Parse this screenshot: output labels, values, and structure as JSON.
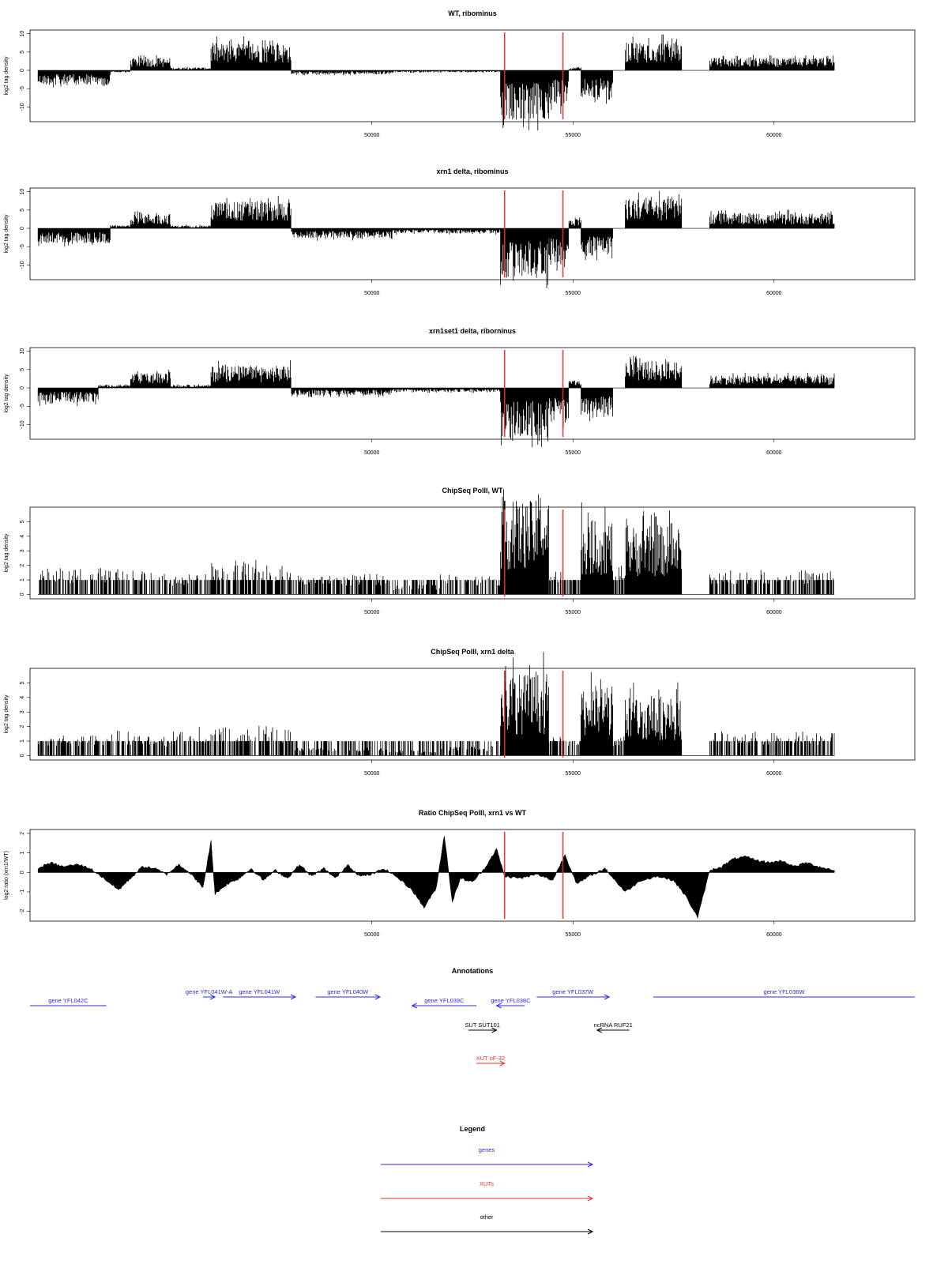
{
  "chart_data": {
    "xlim": [
      41500,
      63500
    ],
    "x_ticks": [
      50000,
      55000,
      60000
    ],
    "data_range": [
      41700,
      61500
    ],
    "markers": {
      "positions": [
        53300,
        54750
      ],
      "color": "#e8312f"
    },
    "panels": [
      {
        "title": "WT, ribominus",
        "ylabel": "log2 tag density",
        "ylim": [
          -14,
          11
        ],
        "y_ticks": [
          -10,
          -5,
          0,
          5,
          10
        ],
        "type": "bar",
        "segments": [
          [
            41700,
            43500,
            -3
          ],
          [
            43500,
            44000,
            -0.4
          ],
          [
            44000,
            45000,
            2.5
          ],
          [
            45000,
            46000,
            0.6
          ],
          [
            46000,
            47200,
            5.5
          ],
          [
            47200,
            48000,
            5.5
          ],
          [
            48000,
            50500,
            -0.8
          ],
          [
            50500,
            51700,
            -0.4
          ],
          [
            51700,
            53200,
            -0.4
          ],
          [
            53200,
            54400,
            -10
          ],
          [
            54400,
            54900,
            -7
          ],
          [
            54900,
            55200,
            0.6
          ],
          [
            55200,
            56000,
            -6
          ],
          [
            56000,
            56300,
            0
          ],
          [
            56300,
            57700,
            6
          ],
          [
            57700,
            58400,
            0
          ],
          [
            58400,
            61500,
            2.5
          ]
        ]
      },
      {
        "title": "xrn1 delta, ribominus",
        "ylabel": "log2 tag density",
        "ylim": [
          -14,
          11
        ],
        "y_ticks": [
          -10,
          -5,
          0,
          5,
          10
        ],
        "type": "bar",
        "segments": [
          [
            41700,
            43500,
            -3
          ],
          [
            43500,
            44000,
            0.6
          ],
          [
            44000,
            45000,
            3
          ],
          [
            45000,
            46000,
            0.6
          ],
          [
            46000,
            47200,
            5.5
          ],
          [
            47200,
            48000,
            5.5
          ],
          [
            48000,
            50500,
            -2
          ],
          [
            50500,
            51700,
            -1
          ],
          [
            51700,
            53200,
            -1
          ],
          [
            53200,
            54400,
            -10
          ],
          [
            54400,
            54900,
            -7
          ],
          [
            54900,
            55200,
            2
          ],
          [
            55200,
            56000,
            -6
          ],
          [
            56000,
            56300,
            0
          ],
          [
            56300,
            57700,
            6
          ],
          [
            57700,
            58400,
            0
          ],
          [
            58400,
            61500,
            3
          ]
        ]
      },
      {
        "title": "xrn1set1 delta, riborninus",
        "ylabel": "log2 tag density",
        "ylim": [
          -14,
          11
        ],
        "y_ticks": [
          -10,
          -5,
          0,
          5,
          10
        ],
        "type": "bar",
        "segments": [
          [
            41700,
            43200,
            -3
          ],
          [
            43200,
            44000,
            0.6
          ],
          [
            44000,
            45000,
            3
          ],
          [
            45000,
            46000,
            0.6
          ],
          [
            46000,
            47200,
            4.5
          ],
          [
            47200,
            48000,
            4.5
          ],
          [
            48000,
            50500,
            -1.5
          ],
          [
            50500,
            51700,
            -0.8
          ],
          [
            51700,
            53200,
            -0.8
          ],
          [
            53200,
            54400,
            -10
          ],
          [
            54400,
            54900,
            -7
          ],
          [
            54900,
            55200,
            1.5
          ],
          [
            55200,
            56000,
            -6
          ],
          [
            56000,
            56300,
            0
          ],
          [
            56300,
            57700,
            5.5
          ],
          [
            57700,
            58400,
            0
          ],
          [
            58400,
            61500,
            2.5
          ]
        ]
      },
      {
        "title": "ChipSeq PolII, WT",
        "ylabel": "log2 tag density",
        "ylim": [
          -0.3,
          6
        ],
        "y_ticks": [
          0,
          1,
          2,
          3,
          4,
          5
        ],
        "type": "bar",
        "segments": [
          [
            41700,
            44100,
            1.3
          ],
          [
            44100,
            45000,
            1.2
          ],
          [
            45000,
            46000,
            1
          ],
          [
            46000,
            47200,
            1.8
          ],
          [
            47200,
            48000,
            1.5
          ],
          [
            48000,
            50500,
            1
          ],
          [
            50500,
            51700,
            0.5
          ],
          [
            51700,
            53200,
            1
          ],
          [
            53200,
            54400,
            4.8
          ],
          [
            54400,
            54900,
            1.2
          ],
          [
            54900,
            55200,
            1
          ],
          [
            55200,
            56000,
            3.8
          ],
          [
            56000,
            56300,
            1.5
          ],
          [
            56300,
            57700,
            3.5
          ],
          [
            57700,
            58400,
            0
          ],
          [
            58400,
            61500,
            1.2
          ]
        ]
      },
      {
        "title": "ChipSeq PolII, xrn1 delta",
        "ylabel": "log2 tag density",
        "ylim": [
          -0.3,
          6
        ],
        "y_ticks": [
          0,
          1,
          2,
          3,
          4,
          5
        ],
        "type": "bar",
        "segments": [
          [
            41700,
            43500,
            1
          ],
          [
            43500,
            44000,
            1.3
          ],
          [
            44000,
            45000,
            1
          ],
          [
            45000,
            46000,
            1.5
          ],
          [
            46000,
            47200,
            1.5
          ],
          [
            47200,
            48000,
            1.5
          ],
          [
            48000,
            50500,
            0.4
          ],
          [
            50500,
            51700,
            0.3
          ],
          [
            51700,
            53200,
            0.5
          ],
          [
            53200,
            54400,
            4.2
          ],
          [
            54400,
            54900,
            1
          ],
          [
            54900,
            55200,
            0.8
          ],
          [
            55200,
            56000,
            3.6
          ],
          [
            56000,
            56300,
            1
          ],
          [
            56300,
            57700,
            3
          ],
          [
            57700,
            58400,
            0
          ],
          [
            58400,
            61500,
            1.2
          ]
        ]
      },
      {
        "title": "Ratio ChipSeq PolII, xrn1 vs WT",
        "ylabel": "log2 ratio (xrn1/WT)",
        "ylim": [
          -2.5,
          2.2
        ],
        "y_ticks": [
          -2,
          -1,
          0,
          1,
          2
        ],
        "type": "area",
        "points": [
          [
            41700,
            0.2
          ],
          [
            42000,
            0.5
          ],
          [
            42300,
            0.3
          ],
          [
            42700,
            0.4
          ],
          [
            43000,
            0.2
          ],
          [
            43400,
            -0.4
          ],
          [
            43700,
            -0.9
          ],
          [
            44000,
            -0.3
          ],
          [
            44300,
            0.3
          ],
          [
            44600,
            0.2
          ],
          [
            44900,
            -0.1
          ],
          [
            45200,
            0.4
          ],
          [
            45400,
            0.1
          ],
          [
            45600,
            -0.3
          ],
          [
            45800,
            -0.8
          ],
          [
            46000,
            1.6
          ],
          [
            46100,
            -1.1
          ],
          [
            46400,
            -0.6
          ],
          [
            46700,
            -0.3
          ],
          [
            47000,
            0.2
          ],
          [
            47300,
            -0.4
          ],
          [
            47600,
            0.1
          ],
          [
            47900,
            -0.3
          ],
          [
            48200,
            0.4
          ],
          [
            48500,
            -0.2
          ],
          [
            48800,
            0.2
          ],
          [
            49100,
            -0.3
          ],
          [
            49400,
            0.4
          ],
          [
            49700,
            -0.2
          ],
          [
            50000,
            -0.1
          ],
          [
            50300,
            0.2
          ],
          [
            50600,
            -0.2
          ],
          [
            51000,
            -0.9
          ],
          [
            51300,
            -1.8
          ],
          [
            51600,
            -0.8
          ],
          [
            51800,
            1.9
          ],
          [
            52000,
            -1.5
          ],
          [
            52200,
            -0.3
          ],
          [
            52500,
            -0.5
          ],
          [
            52800,
            0.2
          ],
          [
            53100,
            1.2
          ],
          [
            53300,
            -0.2
          ],
          [
            53700,
            -0.3
          ],
          [
            54100,
            -0.1
          ],
          [
            54500,
            -0.4
          ],
          [
            54800,
            0.9
          ],
          [
            55100,
            -0.6
          ],
          [
            55400,
            -0.2
          ],
          [
            55800,
            0.2
          ],
          [
            56000,
            -0.3
          ],
          [
            56300,
            -1.0
          ],
          [
            56700,
            -0.4
          ],
          [
            57100,
            -0.2
          ],
          [
            57500,
            -0.4
          ],
          [
            57800,
            -1.2
          ],
          [
            58100,
            -2.3
          ],
          [
            58400,
            0.1
          ],
          [
            58700,
            0.3
          ],
          [
            59000,
            0.7
          ],
          [
            59300,
            0.8
          ],
          [
            59600,
            0.6
          ],
          [
            59900,
            0.5
          ],
          [
            60200,
            0.6
          ],
          [
            60500,
            0.3
          ],
          [
            60800,
            0.5
          ],
          [
            61100,
            0.3
          ],
          [
            61500,
            0.1
          ]
        ]
      }
    ],
    "annotations": {
      "title": "Annotations",
      "items": [
        {
          "label": "gene YFL042C",
          "start": 41500,
          "end": 43400,
          "dir": "none",
          "row": 1,
          "color": "#2b2be0"
        },
        {
          "label": "gene YFL041W-A",
          "start": 45800,
          "end": 46100,
          "dir": "right",
          "row": 0,
          "color": "#2b2be0"
        },
        {
          "label": "gene YFL041W",
          "start": 46300,
          "end": 48100,
          "dir": "right",
          "row": 0,
          "color": "#2b2be0"
        },
        {
          "label": "gene YFL040W",
          "start": 48600,
          "end": 50200,
          "dir": "right",
          "row": 0,
          "color": "#2b2be0"
        },
        {
          "label": "gene YFL039C",
          "start": 51000,
          "end": 52600,
          "dir": "left",
          "row": 1,
          "color": "#2b2be0"
        },
        {
          "label": "gene YFL038C",
          "start": 53100,
          "end": 53800,
          "dir": "left",
          "row": 1,
          "color": "#2b2be0"
        },
        {
          "label": "gene YFL037W",
          "start": 54100,
          "end": 55900,
          "dir": "right",
          "row": 0,
          "color": "#2b2be0"
        },
        {
          "label": "gene YFL036W",
          "start": 57000,
          "end": 63500,
          "dir": "none",
          "row": 0,
          "color": "#2b2be0"
        },
        {
          "label": "SUT SUT101",
          "start": 52400,
          "end": 53100,
          "dir": "right",
          "row": 2,
          "color": "#000000"
        },
        {
          "label": "ncRNA RUF21",
          "start": 55600,
          "end": 56400,
          "dir": "left",
          "row": 2,
          "color": "#000000"
        },
        {
          "label": "XUT oF-32",
          "start": 52600,
          "end": 53300,
          "dir": "right",
          "row": 3,
          "color": "#e8312f"
        }
      ]
    },
    "legend": {
      "title": "Legend",
      "entries": [
        {
          "label": "genes",
          "color": "#2b2be0"
        },
        {
          "label": "XUTs",
          "color": "#e8312f"
        },
        {
          "label": "other",
          "color": "#000000"
        }
      ]
    }
  }
}
